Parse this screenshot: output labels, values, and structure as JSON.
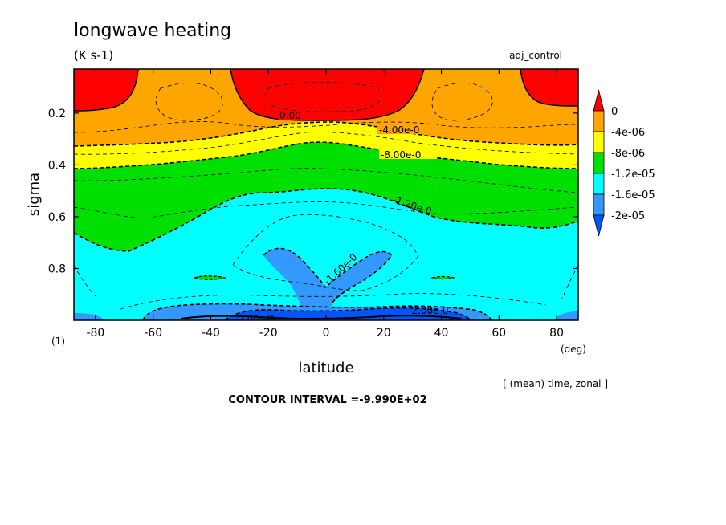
{
  "chart_data": {
    "type": "contour",
    "title": "longwave heating",
    "units": "(K s-1)",
    "run_label": "adj_control",
    "xlabel": "latitude",
    "ylabel": "sigma",
    "x_unit": "(deg)",
    "level_note": "(1)",
    "averaging_note": "[ (mean) time, zonal ]",
    "contour_interval_note": "CONTOUR INTERVAL =-9.990E+02",
    "xlim": [
      -87.5,
      87.5
    ],
    "ylim": [
      0.03,
      1.0
    ],
    "y_inverted": true,
    "x_ticks": [
      -80,
      -60,
      -40,
      -20,
      0,
      20,
      40,
      60,
      80
    ],
    "x_tick_labels": [
      "-80",
      "-60",
      "-40",
      "-20",
      "0",
      "20",
      "40",
      "60",
      "80"
    ],
    "y_ticks": [
      0.2,
      0.4,
      0.6,
      0.8
    ],
    "y_tick_labels": [
      "0.2",
      "0.4",
      "0.6",
      "0.8"
    ],
    "colorbar": {
      "labels": [
        "0",
        "-4e-06",
        "-8e-06",
        "-1.2e-05",
        "-1.6e-05",
        "-2e-05"
      ],
      "colors": [
        "#ff0000",
        "#ffa500",
        "#ffff00",
        "#00e000",
        "#00ffff",
        "#3399ff",
        "#0055ff"
      ]
    },
    "contour_labels": [
      "0.00",
      "-4.00e-0",
      "-8.00e-0",
      "-1.20e-0",
      "-1.60e-0",
      "-2.00e-0",
      "-2.00e-0"
    ],
    "bands": [
      {
        "lower_bound": 0,
        "color": "#ff0000",
        "boundary": [
          [
            -87.5,
            0.21
          ],
          [
            -80,
            0.22
          ],
          [
            -70,
            0.2
          ],
          [
            -66,
            0.1
          ],
          [
            -64,
            0.03
          ]
        ]
      },
      {
        "lower_bound": 0,
        "color": "#ff0000",
        "boundary": [
          [
            -35,
            0.03
          ],
          [
            -33,
            0.08
          ],
          [
            -25,
            0.15
          ],
          [
            -15,
            0.2
          ],
          [
            0,
            0.22
          ],
          [
            15,
            0.2
          ],
          [
            25,
            0.15
          ],
          [
            32,
            0.08
          ],
          [
            34,
            0.03
          ]
        ]
      },
      {
        "lower_bound": 0,
        "color": "#ff0000",
        "boundary": [
          [
            67,
            0.03
          ],
          [
            67,
            0.1
          ],
          [
            70,
            0.17
          ],
          [
            80,
            0.2
          ],
          [
            87.5,
            0.2
          ]
        ]
      },
      {
        "lower_bound": -4e-06,
        "color": "#ffa500",
        "boundary": [
          [
            -87.5,
            0.3
          ],
          [
            -60,
            0.3
          ],
          [
            -40,
            0.3
          ],
          [
            -20,
            0.27
          ],
          [
            0,
            0.25
          ],
          [
            20,
            0.26
          ],
          [
            40,
            0.28
          ],
          [
            60,
            0.28
          ],
          [
            87.5,
            0.28
          ]
        ]
      },
      {
        "lower_bound": -8e-06,
        "color": "#ffff00",
        "boundary": [
          [
            -87.5,
            0.4
          ],
          [
            -60,
            0.39
          ],
          [
            -40,
            0.36
          ],
          [
            -20,
            0.34
          ],
          [
            0,
            0.3
          ],
          [
            20,
            0.32
          ],
          [
            40,
            0.36
          ],
          [
            60,
            0.38
          ],
          [
            87.5,
            0.39
          ]
        ]
      },
      {
        "lower_bound": -1.2e-05,
        "color": "#00e000",
        "boundary": [
          [
            -87.5,
            0.6
          ],
          [
            -80,
            0.66
          ],
          [
            -70,
            0.73
          ],
          [
            -60,
            0.69
          ],
          [
            -45,
            0.63
          ],
          [
            -30,
            0.55
          ],
          [
            -20,
            0.49
          ],
          [
            0,
            0.47
          ],
          [
            20,
            0.52
          ],
          [
            35,
            0.57
          ],
          [
            50,
            0.6
          ],
          [
            65,
            0.6
          ],
          [
            87.5,
            0.58
          ]
        ]
      },
      {
        "lower_bound": -1.6e-05,
        "color": "#00ffff",
        "boundary": [
          [
            -87.5,
            1.0
          ],
          [
            -35,
            1.0
          ],
          [
            -20,
            0.98
          ],
          [
            -10,
            0.94
          ],
          [
            -5,
            0.85
          ],
          [
            -15,
            0.8
          ],
          [
            -20,
            0.75
          ],
          [
            -10,
            0.7
          ],
          [
            0,
            0.78
          ],
          [
            2,
            0.86
          ],
          [
            10,
            0.8
          ],
          [
            20,
            0.72
          ],
          [
            25,
            0.75
          ],
          [
            15,
            0.83
          ],
          [
            10,
            0.92
          ],
          [
            20,
            0.96
          ],
          [
            40,
            0.99
          ],
          [
            60,
            1.0
          ],
          [
            87.5,
            1.0
          ]
        ]
      },
      {
        "lower_bound": -1.6e-05,
        "color": "#00ffff",
        "boundary": [
          [
            -87.5,
            1.0
          ],
          [
            -87.5,
            1.0
          ]
        ]
      },
      {
        "lower_bound": -2e-05,
        "color": "#3399ff",
        "boundary": [
          [
            -87.5,
            1.0
          ],
          [
            -80,
            1.0
          ],
          [
            -70,
            0.99
          ],
          [
            -60,
            0.98
          ],
          [
            -50,
            0.97
          ],
          [
            -40,
            0.975
          ],
          [
            -40,
            1.0
          ]
        ]
      },
      {
        "lower_bound": -2e-05,
        "color": "#3399ff",
        "boundary": [
          [
            60,
            1.0
          ],
          [
            70,
            0.99
          ],
          [
            87.5,
            0.99
          ],
          [
            87.5,
            1.0
          ]
        ]
      },
      {
        "lower_bound": -2.4e-05,
        "color": "#0055ff",
        "boundary": [
          [
            -45,
            1.0
          ],
          [
            -35,
            0.995
          ],
          [
            -20,
            0.99
          ],
          [
            0,
            0.995
          ],
          [
            20,
            0.99
          ],
          [
            40,
            0.995
          ],
          [
            55,
            1.0
          ]
        ]
      }
    ]
  }
}
